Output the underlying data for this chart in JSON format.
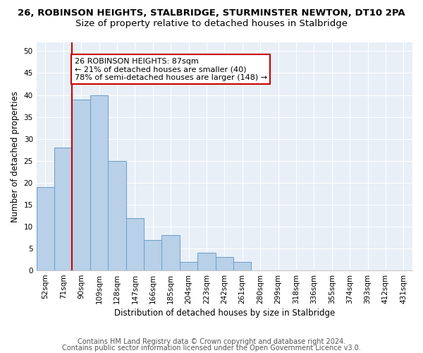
{
  "title": "26, ROBINSON HEIGHTS, STALBRIDGE, STURMINSTER NEWTON, DT10 2PA",
  "subtitle": "Size of property relative to detached houses in Stalbridge",
  "xlabel": "Distribution of detached houses by size in Stalbridge",
  "ylabel": "Number of detached properties",
  "bar_labels": [
    "52sqm",
    "71sqm",
    "90sqm",
    "109sqm",
    "128sqm",
    "147sqm",
    "166sqm",
    "185sqm",
    "204sqm",
    "223sqm",
    "242sqm",
    "261sqm",
    "280sqm",
    "299sqm",
    "318sqm",
    "336sqm",
    "355sqm",
    "374sqm",
    "393sqm",
    "412sqm",
    "431sqm"
  ],
  "bar_values": [
    19,
    28,
    39,
    40,
    25,
    12,
    7,
    8,
    2,
    4,
    3,
    2,
    0,
    0,
    0,
    0,
    0,
    0,
    0,
    0,
    0
  ],
  "bar_color": "#b8d0e8",
  "bar_edge_color": "#6a9dc8",
  "vline_x": 2.0,
  "vline_color": "#cc0000",
  "annotation_text": "26 ROBINSON HEIGHTS: 87sqm\n← 21% of detached houses are smaller (40)\n78% of semi-detached houses are larger (148) →",
  "annotation_box_color": "#cc0000",
  "ylim": [
    0,
    52
  ],
  "yticks": [
    0,
    5,
    10,
    15,
    20,
    25,
    30,
    35,
    40,
    45,
    50
  ],
  "footer1": "Contains HM Land Registry data © Crown copyright and database right 2024.",
  "footer2": "Contains public sector information licensed under the Open Government Licence v3.0.",
  "bg_color": "#e8eff7",
  "grid_color": "#ffffff",
  "fig_bg_color": "#ffffff",
  "title_fontsize": 9.5,
  "subtitle_fontsize": 9.5,
  "xlabel_fontsize": 8.5,
  "ylabel_fontsize": 8.5,
  "tick_fontsize": 7.5,
  "annotation_fontsize": 8.0,
  "footer_fontsize": 7.0
}
